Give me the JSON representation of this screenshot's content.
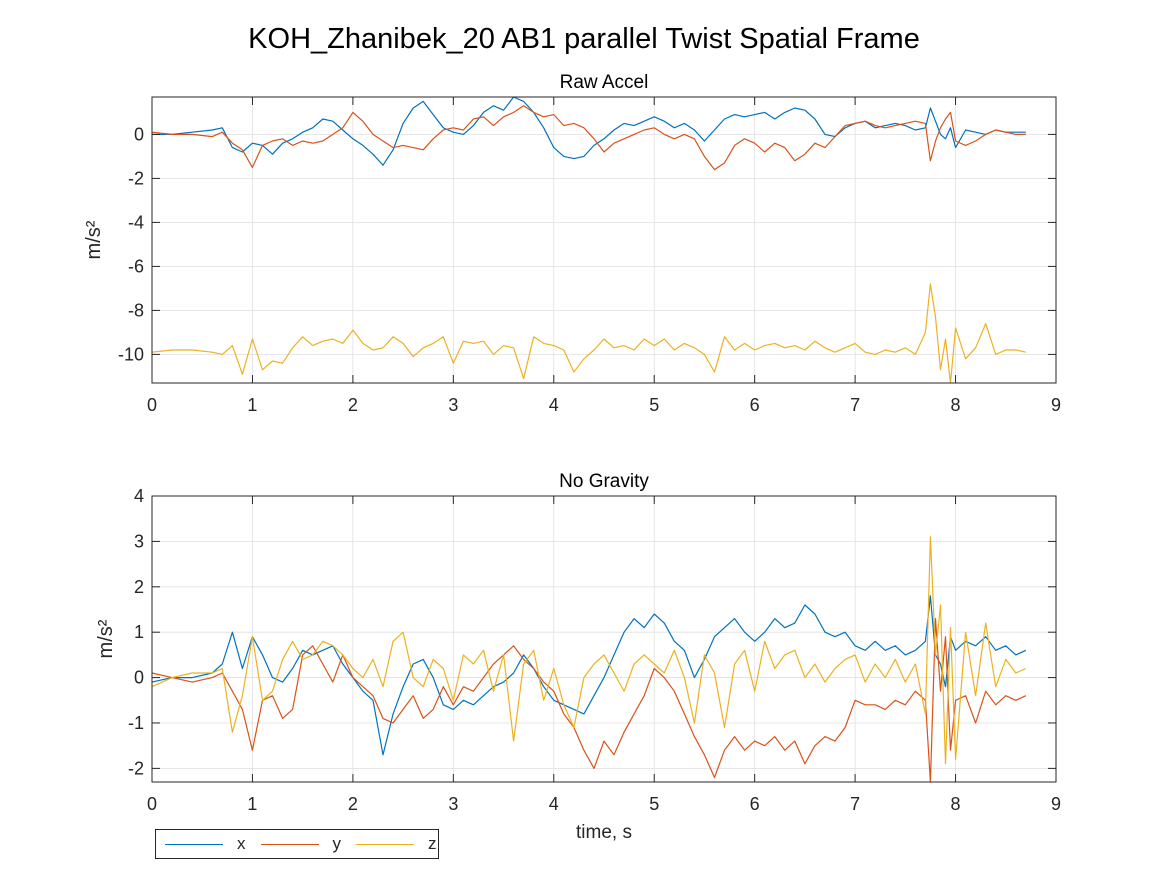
{
  "figure_title": "KOH_Zhanibek_20 AB1 parallel Twist Spatial Frame",
  "colors": {
    "x": "#0072BD",
    "y": "#D95319",
    "z": "#EDB120"
  },
  "legend": {
    "x": "x",
    "y": "y",
    "z": "z"
  },
  "chart_data": [
    {
      "type": "line",
      "title": "Raw Accel",
      "xlabel": "",
      "ylabel": "m/s²",
      "xlim": [
        0,
        9
      ],
      "ylim": [
        -11.3,
        1.7
      ],
      "xticks": [
        0,
        1,
        2,
        3,
        4,
        5,
        6,
        7,
        8,
        9
      ],
      "yticks": [
        -10,
        -8,
        -6,
        -4,
        -2,
        0
      ],
      "grid": true,
      "x": [
        0,
        0.2,
        0.4,
        0.6,
        0.7,
        0.8,
        0.9,
        1.0,
        1.1,
        1.2,
        1.3,
        1.4,
        1.5,
        1.6,
        1.7,
        1.8,
        1.9,
        2.0,
        2.1,
        2.2,
        2.3,
        2.4,
        2.5,
        2.6,
        2.7,
        2.8,
        2.9,
        3.0,
        3.1,
        3.2,
        3.3,
        3.4,
        3.5,
        3.6,
        3.7,
        3.8,
        3.9,
        4.0,
        4.1,
        4.2,
        4.3,
        4.4,
        4.5,
        4.6,
        4.7,
        4.8,
        4.9,
        5.0,
        5.1,
        5.2,
        5.3,
        5.4,
        5.5,
        5.6,
        5.7,
        5.8,
        5.9,
        6.0,
        6.1,
        6.2,
        6.3,
        6.4,
        6.5,
        6.6,
        6.7,
        6.8,
        6.9,
        7.0,
        7.1,
        7.2,
        7.3,
        7.4,
        7.5,
        7.6,
        7.7,
        7.75,
        7.8,
        7.85,
        7.9,
        7.95,
        8.0,
        8.1,
        8.2,
        8.3,
        8.4,
        8.5,
        8.6,
        8.7
      ],
      "series": [
        {
          "name": "x",
          "values": [
            0,
            0,
            0.1,
            0.2,
            0.3,
            -0.6,
            -0.8,
            -0.4,
            -0.5,
            -0.9,
            -0.4,
            -0.2,
            0.1,
            0.3,
            0.7,
            0.6,
            0.2,
            -0.2,
            -0.5,
            -0.9,
            -1.4,
            -0.7,
            0.5,
            1.2,
            1.5,
            0.9,
            0.3,
            0.1,
            0.0,
            0.4,
            1.0,
            1.3,
            1.1,
            1.7,
            1.5,
            1.0,
            0.3,
            -0.6,
            -1.0,
            -1.1,
            -1.0,
            -0.5,
            -0.2,
            0.2,
            0.5,
            0.4,
            0.6,
            0.8,
            0.6,
            0.3,
            0.5,
            0.2,
            -0.3,
            0.2,
            0.7,
            0.9,
            0.8,
            0.9,
            1.0,
            0.7,
            1.0,
            1.2,
            1.1,
            0.7,
            0.0,
            -0.1,
            0.3,
            0.5,
            0.6,
            0.3,
            0.4,
            0.5,
            0.4,
            0.2,
            0.3,
            1.2,
            0.6,
            0.0,
            -0.2,
            0.3,
            -0.6,
            0.2,
            0.1,
            0.0,
            0.2,
            0.1,
            0.1,
            0.1
          ]
        },
        {
          "name": "y",
          "values": [
            0.1,
            0,
            0,
            -0.1,
            0.1,
            -0.4,
            -0.7,
            -1.5,
            -0.5,
            -0.3,
            -0.2,
            -0.5,
            -0.3,
            -0.4,
            -0.3,
            0.0,
            0.3,
            1.0,
            0.6,
            0.0,
            -0.3,
            -0.6,
            -0.5,
            -0.6,
            -0.7,
            -0.2,
            0.2,
            0.3,
            0.2,
            0.7,
            0.8,
            0.4,
            0.8,
            1.0,
            1.3,
            1.0,
            0.8,
            0.9,
            0.4,
            0.5,
            0.3,
            -0.2,
            -0.8,
            -0.4,
            -0.2,
            0.0,
            0.2,
            0.3,
            0.0,
            -0.2,
            0.0,
            -0.2,
            -1.0,
            -1.6,
            -1.3,
            -0.5,
            -0.2,
            -0.4,
            -0.8,
            -0.4,
            -0.6,
            -1.2,
            -0.9,
            -0.4,
            -0.6,
            -0.1,
            0.4,
            0.5,
            0.6,
            0.4,
            0.3,
            0.4,
            0.5,
            0.6,
            0.5,
            -1.2,
            -0.3,
            0.3,
            0.7,
            1.0,
            -0.3,
            -0.5,
            -0.3,
            0.0,
            0.2,
            0.1,
            0.0,
            0.0
          ]
        },
        {
          "name": "z",
          "values": [
            -9.9,
            -9.8,
            -9.8,
            -9.9,
            -10.0,
            -9.6,
            -10.9,
            -9.3,
            -10.7,
            -10.3,
            -10.4,
            -9.7,
            -9.2,
            -9.6,
            -9.4,
            -9.3,
            -9.5,
            -8.9,
            -9.5,
            -9.8,
            -9.7,
            -9.2,
            -9.5,
            -10.1,
            -9.7,
            -9.5,
            -9.2,
            -10.4,
            -9.4,
            -9.5,
            -9.4,
            -10.0,
            -9.6,
            -9.7,
            -11.1,
            -9.2,
            -9.5,
            -9.6,
            -9.8,
            -10.8,
            -10.2,
            -9.8,
            -9.3,
            -9.7,
            -9.6,
            -9.8,
            -9.3,
            -9.6,
            -9.3,
            -9.8,
            -9.5,
            -9.7,
            -10.0,
            -10.8,
            -9.2,
            -9.8,
            -9.5,
            -9.8,
            -9.6,
            -9.5,
            -9.7,
            -9.6,
            -9.8,
            -9.4,
            -9.7,
            -9.9,
            -9.7,
            -9.5,
            -9.9,
            -10.0,
            -9.8,
            -9.9,
            -9.7,
            -10.0,
            -9.0,
            -6.8,
            -8.3,
            -10.7,
            -9.3,
            -11.3,
            -8.8,
            -10.2,
            -9.7,
            -8.6,
            -10.0,
            -9.8,
            -9.8,
            -9.9
          ]
        }
      ]
    },
    {
      "type": "line",
      "title": "No Gravity",
      "xlabel": "time, s",
      "ylabel": "m/s²",
      "xlim": [
        0,
        9
      ],
      "ylim": [
        -2.3,
        4
      ],
      "xticks": [
        0,
        1,
        2,
        3,
        4,
        5,
        6,
        7,
        8,
        9
      ],
      "yticks": [
        -2,
        -1,
        0,
        1,
        2,
        3,
        4
      ],
      "grid": true,
      "x": [
        0,
        0.2,
        0.4,
        0.6,
        0.7,
        0.8,
        0.9,
        1.0,
        1.1,
        1.2,
        1.3,
        1.4,
        1.5,
        1.6,
        1.7,
        1.8,
        1.9,
        2.0,
        2.1,
        2.2,
        2.3,
        2.4,
        2.5,
        2.6,
        2.7,
        2.8,
        2.9,
        3.0,
        3.1,
        3.2,
        3.3,
        3.4,
        3.5,
        3.6,
        3.7,
        3.8,
        3.9,
        4.0,
        4.1,
        4.2,
        4.3,
        4.4,
        4.5,
        4.6,
        4.7,
        4.8,
        4.9,
        5.0,
        5.1,
        5.2,
        5.3,
        5.4,
        5.5,
        5.6,
        5.7,
        5.8,
        5.9,
        6.0,
        6.1,
        6.2,
        6.3,
        6.4,
        6.5,
        6.6,
        6.7,
        6.8,
        6.9,
        7.0,
        7.1,
        7.2,
        7.3,
        7.4,
        7.5,
        7.6,
        7.7,
        7.75,
        7.8,
        7.85,
        7.9,
        7.95,
        8.0,
        8.1,
        8.2,
        8.3,
        8.4,
        8.5,
        8.6,
        8.7
      ],
      "series": [
        {
          "name": "x",
          "values": [
            -0.1,
            0.0,
            0.0,
            0.1,
            0.3,
            1.0,
            0.2,
            0.9,
            0.5,
            0.0,
            -0.1,
            0.2,
            0.6,
            0.5,
            0.6,
            0.7,
            0.3,
            0.0,
            -0.3,
            -0.5,
            -1.7,
            -0.8,
            -0.2,
            0.3,
            0.4,
            0.0,
            -0.6,
            -0.7,
            -0.5,
            -0.6,
            -0.4,
            -0.2,
            -0.1,
            0.1,
            0.5,
            0.2,
            -0.2,
            -0.5,
            -0.6,
            -0.7,
            -0.8,
            -0.4,
            0.0,
            0.5,
            1.0,
            1.3,
            1.1,
            1.4,
            1.2,
            0.8,
            0.6,
            0.0,
            0.4,
            0.9,
            1.1,
            1.3,
            1.0,
            0.8,
            1.0,
            1.3,
            1.1,
            1.2,
            1.6,
            1.4,
            1.0,
            0.9,
            1.0,
            0.7,
            0.6,
            0.8,
            0.6,
            0.7,
            0.5,
            0.6,
            0.8,
            1.8,
            0.5,
            0.3,
            -0.2,
            0.9,
            0.6,
            0.8,
            0.7,
            0.9,
            0.6,
            0.7,
            0.5,
            0.6
          ]
        },
        {
          "name": "y",
          "values": [
            0.1,
            0.0,
            -0.1,
            0.0,
            0.1,
            -0.3,
            -0.7,
            -1.6,
            -0.5,
            -0.4,
            -0.9,
            -0.7,
            0.5,
            0.7,
            0.3,
            -0.1,
            0.5,
            0.0,
            -0.2,
            -0.4,
            -0.9,
            -1.0,
            -0.7,
            -0.4,
            -0.9,
            -0.7,
            -0.2,
            -0.6,
            -0.2,
            -0.3,
            0.0,
            0.3,
            0.5,
            0.7,
            0.4,
            0.2,
            -0.1,
            -0.3,
            -0.8,
            -1.1,
            -1.6,
            -2.0,
            -1.4,
            -1.7,
            -1.2,
            -0.8,
            -0.4,
            0.2,
            0.0,
            -0.3,
            -0.8,
            -1.3,
            -1.7,
            -2.2,
            -1.6,
            -1.3,
            -1.6,
            -1.4,
            -1.5,
            -1.3,
            -1.6,
            -1.4,
            -1.9,
            -1.5,
            -1.3,
            -1.4,
            -1.1,
            -0.5,
            -0.6,
            -0.6,
            -0.7,
            -0.5,
            -0.6,
            -0.3,
            -0.5,
            -2.3,
            1.3,
            -0.3,
            0.9,
            -1.6,
            -0.5,
            -0.4,
            -1.0,
            -0.3,
            -0.6,
            -0.4,
            -0.5,
            -0.4
          ]
        },
        {
          "name": "z",
          "values": [
            -0.2,
            0.0,
            0.1,
            0.1,
            0.2,
            -1.2,
            -0.4,
            0.9,
            -0.5,
            -0.3,
            0.4,
            0.8,
            0.4,
            0.5,
            0.8,
            0.7,
            0.5,
            0.2,
            0.0,
            0.4,
            -0.2,
            0.8,
            1.0,
            0.0,
            -0.2,
            0.4,
            0.2,
            -0.5,
            0.5,
            0.3,
            0.6,
            -0.3,
            0.5,
            -1.4,
            0.3,
            0.6,
            -0.5,
            0.2,
            -0.6,
            -1.1,
            0.0,
            0.3,
            0.5,
            0.1,
            -0.3,
            0.3,
            0.5,
            0.3,
            0.1,
            0.6,
            0.0,
            -1.0,
            0.5,
            0.1,
            -1.1,
            0.3,
            0.6,
            -0.3,
            0.8,
            0.2,
            0.5,
            0.6,
            0.0,
            0.3,
            -0.1,
            0.2,
            0.4,
            0.5,
            -0.1,
            0.3,
            0.0,
            0.4,
            -0.1,
            0.3,
            -0.8,
            3.1,
            0.5,
            1.6,
            -1.9,
            1.1,
            -1.8,
            1.0,
            -0.4,
            1.2,
            -0.2,
            0.4,
            0.1,
            0.2
          ]
        }
      ]
    }
  ]
}
